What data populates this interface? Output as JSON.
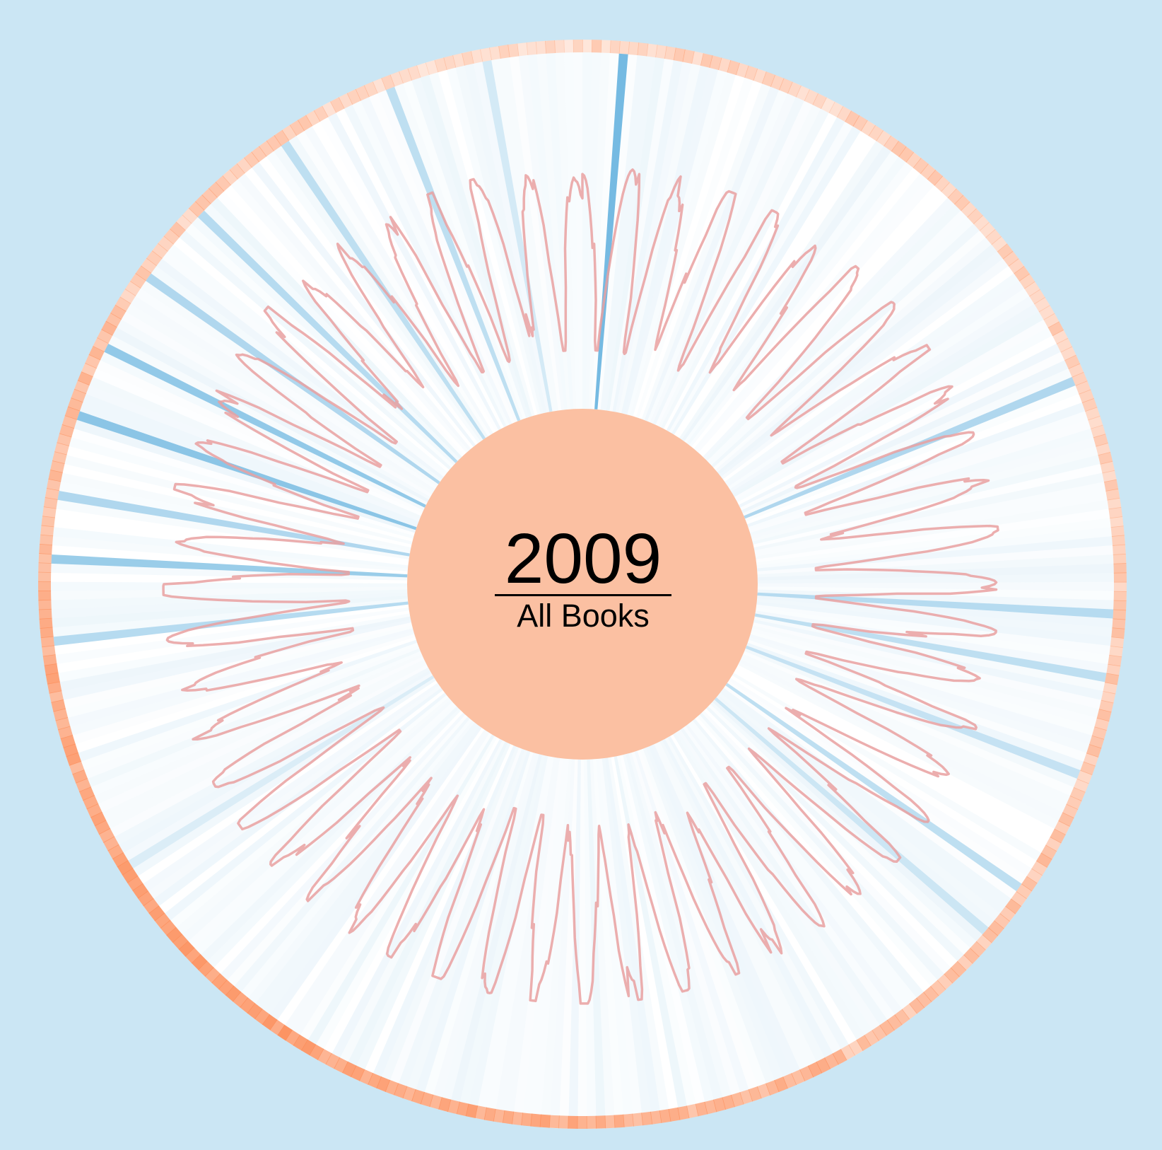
{
  "center": {
    "year": "2009",
    "subtitle": "All Books"
  },
  "colors": {
    "background": "#cbe6f4",
    "dial_face": "#ffffff",
    "hub_fill": "#fbc0a2",
    "outer_ring_base": "#fc8d59",
    "spoke_base": "#3e9fd6",
    "wave_line": "#e9a0a0"
  },
  "chart_data": {
    "type": "radial",
    "days": 365,
    "outer_ring_intensity_by_month": [
      0.35,
      0.38,
      0.42,
      0.45,
      0.5,
      0.62,
      0.72,
      0.82,
      0.7,
      0.55,
      0.4,
      0.3
    ],
    "highlighted_spokes": [
      {
        "day": 4,
        "strength": 0.95
      },
      {
        "day": 68,
        "strength": 0.55
      },
      {
        "day": 94,
        "strength": 0.5
      },
      {
        "day": 101,
        "strength": 0.45
      },
      {
        "day": 112,
        "strength": 0.4
      },
      {
        "day": 126,
        "strength": 0.45
      },
      {
        "day": 132,
        "strength": 0.35
      },
      {
        "day": 241,
        "strength": 0.25
      },
      {
        "day": 267,
        "strength": 0.5
      },
      {
        "day": 276,
        "strength": 0.7
      },
      {
        "day": 283,
        "strength": 0.55
      },
      {
        "day": 292,
        "strength": 0.8
      },
      {
        "day": 300,
        "strength": 0.75
      },
      {
        "day": 309,
        "strength": 0.55
      },
      {
        "day": 318,
        "strength": 0.5
      },
      {
        "day": 330,
        "strength": 0.45
      },
      {
        "day": 343,
        "strength": 0.45
      },
      {
        "day": 354,
        "strength": 0.3
      }
    ],
    "weekly_wave": {
      "period_days": 7,
      "min_radius_fraction": 0.43,
      "max_radius_fraction": 0.77
    }
  }
}
